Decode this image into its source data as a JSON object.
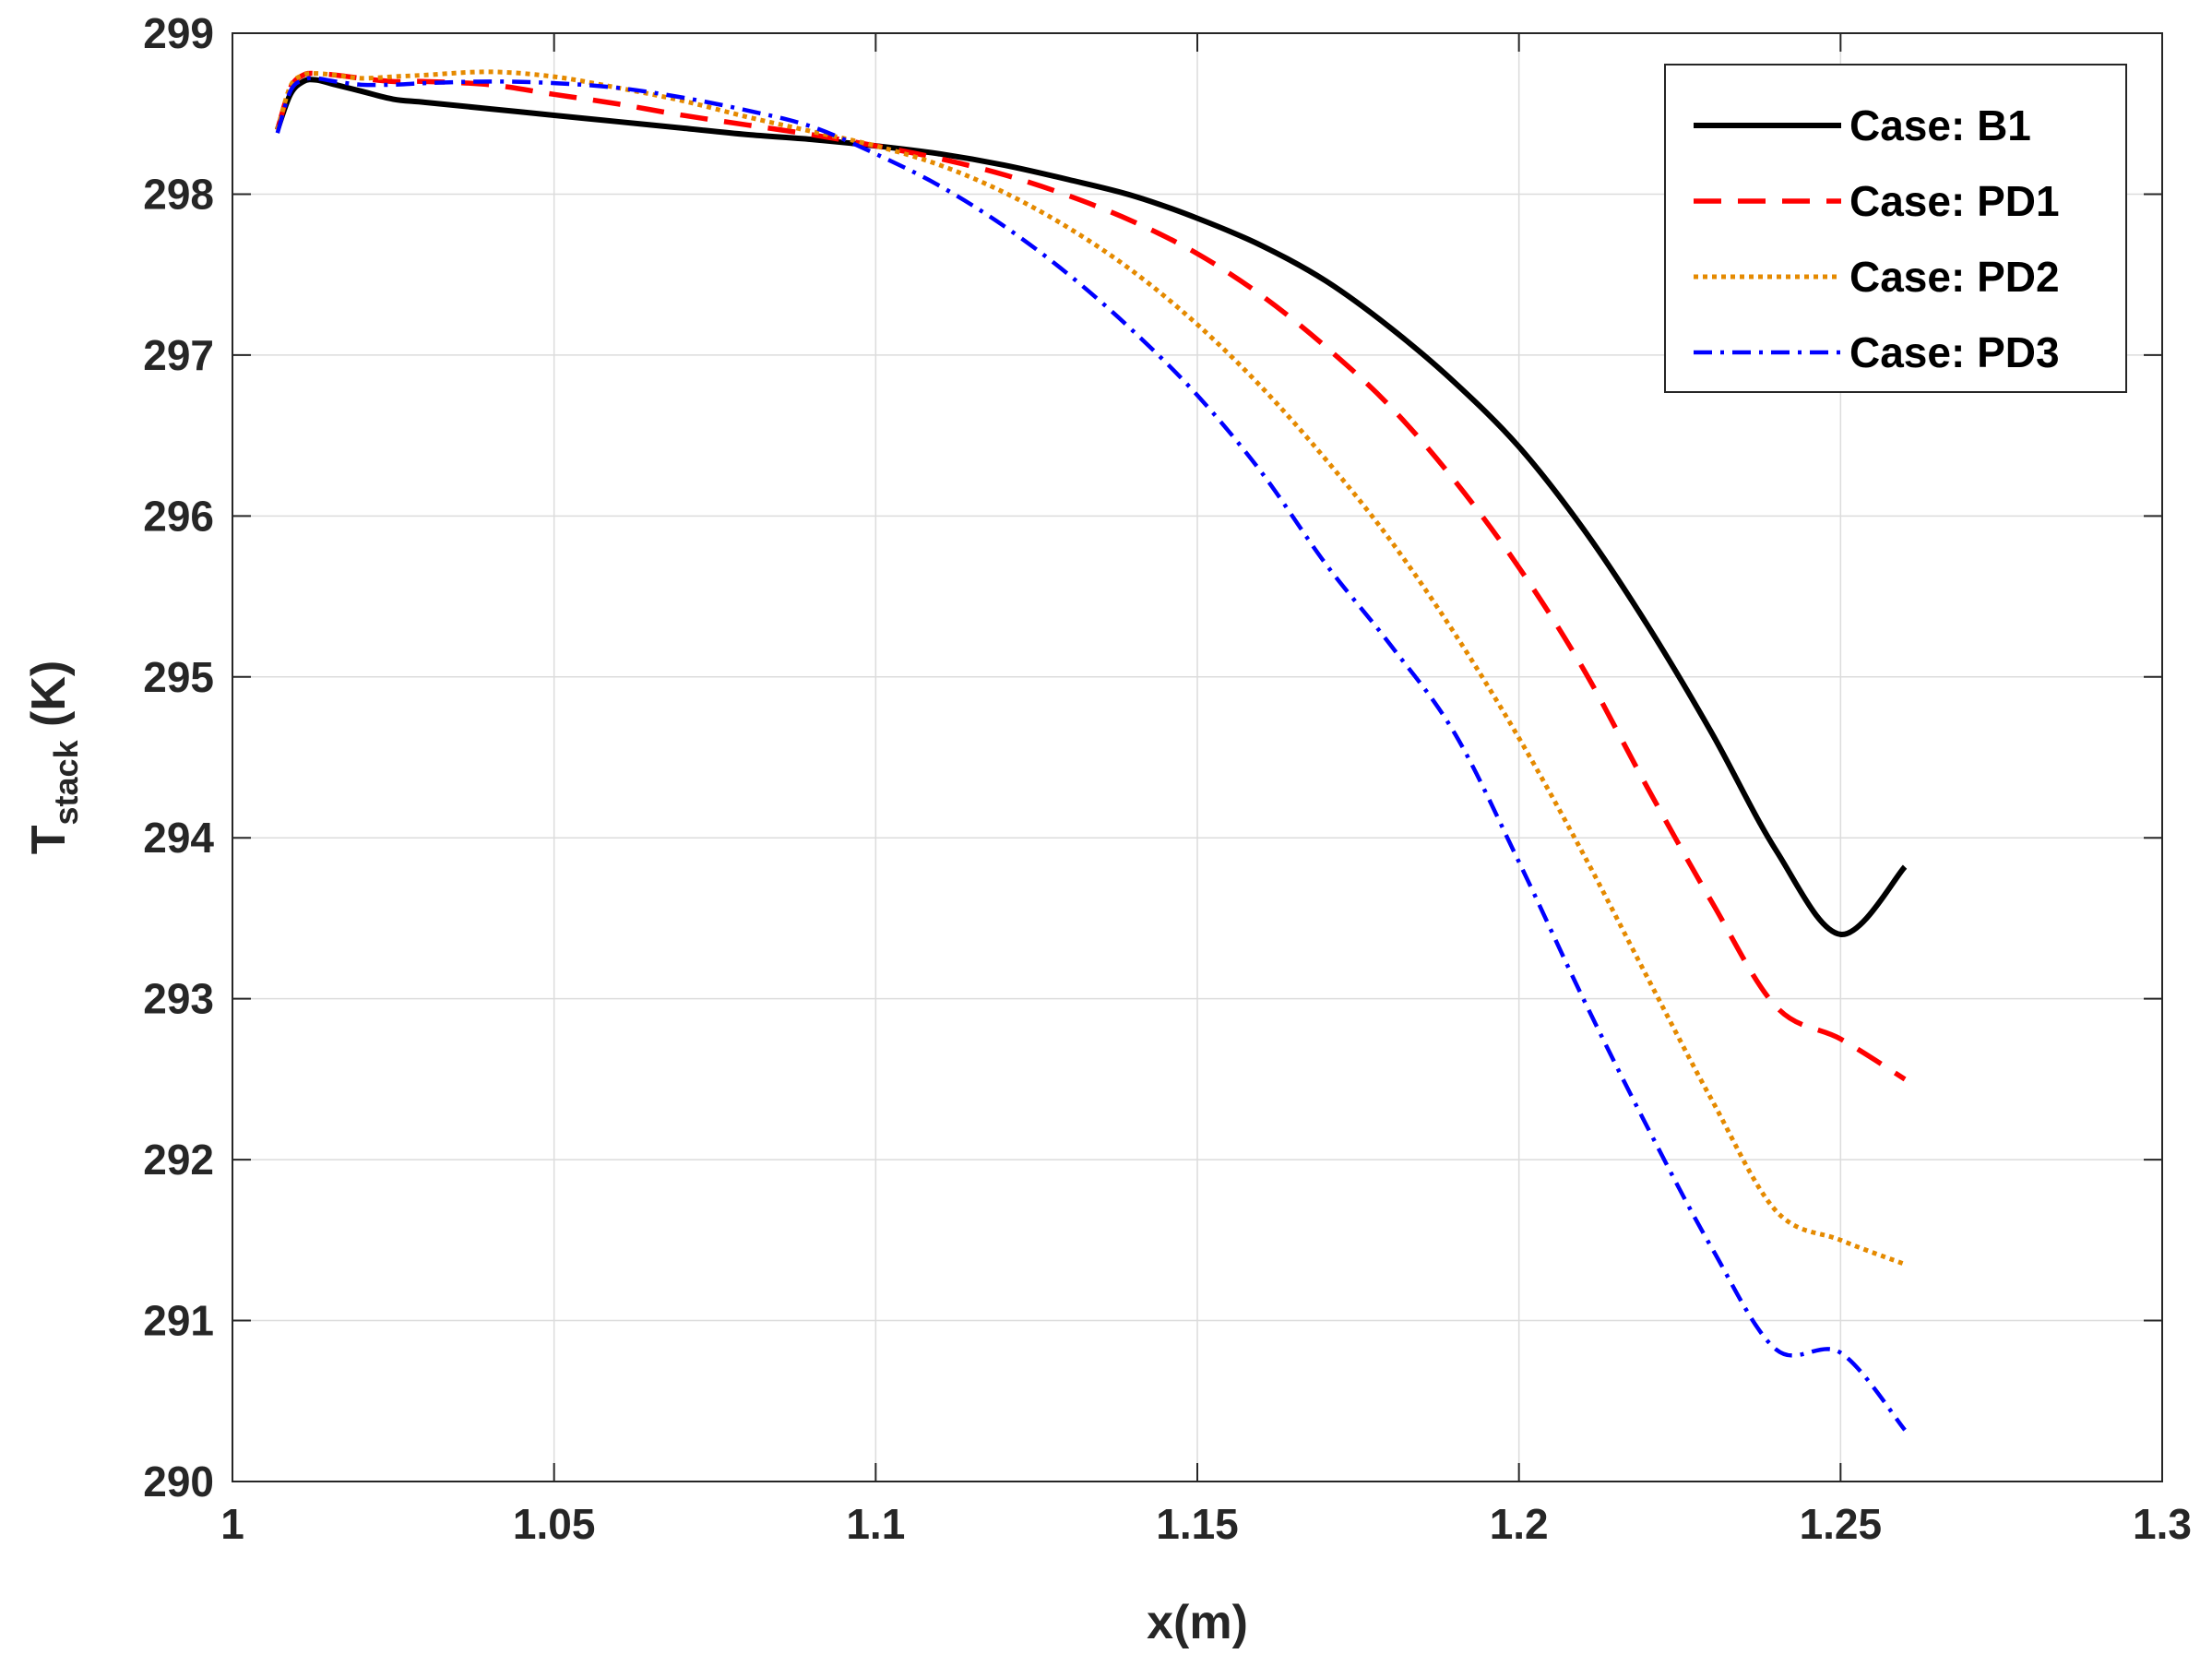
{
  "chart_data": {
    "type": "line",
    "title": "",
    "xlabel": "x(m)",
    "ylabel_main": "T",
    "ylabel_sub": "stack",
    "ylabel_unit": " (K)",
    "xlim": [
      1,
      1.3
    ],
    "ylim": [
      290,
      299
    ],
    "xticks": [
      1,
      1.05,
      1.1,
      1.15,
      1.2,
      1.25,
      1.3
    ],
    "xtick_labels": [
      "1",
      "1.05",
      "1.1",
      "1.15",
      "1.2",
      "1.25",
      "1.3"
    ],
    "yticks": [
      290,
      291,
      292,
      293,
      294,
      295,
      296,
      297,
      298,
      299
    ],
    "ytick_labels": [
      "290",
      "291",
      "292",
      "293",
      "294",
      "295",
      "296",
      "297",
      "298",
      "299"
    ],
    "grid": true,
    "legend_position": "top-right",
    "series": [
      {
        "name": "Case: B1",
        "color": "#000000",
        "dash": "solid",
        "x": [
          1.007,
          1.009,
          1.011,
          1.013,
          1.016,
          1.02,
          1.025,
          1.03,
          1.04,
          1.05,
          1.06,
          1.07,
          1.08,
          1.09,
          1.1,
          1.11,
          1.12,
          1.13,
          1.14,
          1.15,
          1.16,
          1.17,
          1.18,
          1.19,
          1.2,
          1.21,
          1.22,
          1.23,
          1.24,
          1.25,
          1.26
        ],
        "y": [
          298.4,
          298.62,
          298.7,
          298.71,
          298.68,
          298.64,
          298.59,
          298.57,
          298.53,
          298.49,
          298.45,
          298.41,
          298.37,
          298.34,
          298.3,
          298.25,
          298.18,
          298.09,
          297.99,
          297.85,
          297.68,
          297.46,
          297.17,
          296.83,
          296.43,
          295.92,
          295.32,
          294.65,
          293.92,
          293.4,
          293.82
        ]
      },
      {
        "name": "Case: PD1",
        "color": "#ff0000",
        "dash": "dashed",
        "x": [
          1.007,
          1.009,
          1.011,
          1.013,
          1.016,
          1.02,
          1.025,
          1.03,
          1.04,
          1.05,
          1.06,
          1.07,
          1.08,
          1.09,
          1.1,
          1.11,
          1.12,
          1.13,
          1.14,
          1.15,
          1.16,
          1.17,
          1.18,
          1.19,
          1.2,
          1.21,
          1.22,
          1.23,
          1.24,
          1.25,
          1.26
        ],
        "y": [
          298.4,
          298.66,
          298.74,
          298.75,
          298.74,
          298.72,
          298.7,
          298.7,
          298.68,
          298.62,
          298.56,
          298.49,
          298.43,
          298.37,
          298.3,
          298.22,
          298.12,
          297.99,
          297.83,
          297.63,
          297.37,
          297.05,
          296.68,
          296.22,
          295.68,
          295.05,
          294.31,
          293.6,
          292.95,
          292.75,
          292.5
        ]
      },
      {
        "name": "Case: PD2",
        "color": "#e58a00",
        "dash": "dotted",
        "x": [
          1.007,
          1.009,
          1.011,
          1.013,
          1.016,
          1.02,
          1.025,
          1.03,
          1.04,
          1.05,
          1.06,
          1.07,
          1.08,
          1.09,
          1.1,
          1.11,
          1.12,
          1.13,
          1.14,
          1.15,
          1.16,
          1.17,
          1.18,
          1.19,
          1.2,
          1.21,
          1.22,
          1.23,
          1.24,
          1.25,
          1.26
        ],
        "y": [
          298.4,
          298.67,
          298.74,
          298.75,
          298.74,
          298.72,
          298.73,
          298.74,
          298.76,
          298.73,
          298.66,
          298.58,
          298.48,
          298.39,
          298.3,
          298.18,
          298.01,
          297.79,
          297.52,
          297.19,
          296.8,
          296.35,
          295.85,
          295.27,
          294.62,
          293.9,
          293.13,
          292.37,
          291.68,
          291.5,
          291.35
        ]
      },
      {
        "name": "Case: PD3",
        "color": "#0000ff",
        "dash": "dashdot",
        "x": [
          1.007,
          1.009,
          1.011,
          1.013,
          1.016,
          1.02,
          1.025,
          1.03,
          1.04,
          1.05,
          1.06,
          1.07,
          1.08,
          1.09,
          1.1,
          1.11,
          1.12,
          1.13,
          1.14,
          1.15,
          1.16,
          1.17,
          1.18,
          1.19,
          1.2,
          1.21,
          1.22,
          1.23,
          1.24,
          1.25,
          1.26
        ],
        "y": [
          298.38,
          298.64,
          298.71,
          298.72,
          298.7,
          298.68,
          298.68,
          298.69,
          298.7,
          298.69,
          298.66,
          298.6,
          298.52,
          298.42,
          298.25,
          298.05,
          297.8,
          297.5,
          297.15,
          296.75,
          296.27,
          295.7,
          295.2,
          294.65,
          293.85,
          293.0,
          292.2,
          291.45,
          290.82,
          290.8,
          290.32
        ]
      }
    ]
  }
}
